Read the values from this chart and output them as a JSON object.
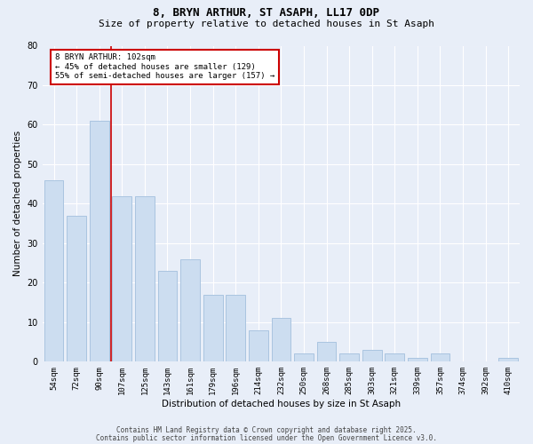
{
  "title1": "8, BRYN ARTHUR, ST ASAPH, LL17 0DP",
  "title2": "Size of property relative to detached houses in St Asaph",
  "xlabel": "Distribution of detached houses by size in St Asaph",
  "ylabel": "Number of detached properties",
  "bar_labels": [
    "54sqm",
    "72sqm",
    "90sqm",
    "107sqm",
    "125sqm",
    "143sqm",
    "161sqm",
    "179sqm",
    "196sqm",
    "214sqm",
    "232sqm",
    "250sqm",
    "268sqm",
    "285sqm",
    "303sqm",
    "321sqm",
    "339sqm",
    "357sqm",
    "374sqm",
    "392sqm",
    "410sqm"
  ],
  "bar_values": [
    46,
    37,
    61,
    42,
    42,
    23,
    26,
    17,
    17,
    8,
    11,
    2,
    5,
    2,
    3,
    2,
    1,
    2,
    0,
    0,
    1
  ],
  "bar_color": "#ccddf0",
  "bar_edge_color": "#aac4e0",
  "vline_x_index": 2,
  "vline_color": "#cc0000",
  "annotation_line1": "8 BRYN ARTHUR: 102sqm",
  "annotation_line2": "← 45% of detached houses are smaller (129)",
  "annotation_line3": "55% of semi-detached houses are larger (157) →",
  "annotation_box_facecolor": "#ffffff",
  "annotation_box_edgecolor": "#cc0000",
  "ylim": [
    0,
    80
  ],
  "yticks": [
    0,
    10,
    20,
    30,
    40,
    50,
    60,
    70,
    80
  ],
  "background_color": "#e8eef8",
  "grid_color": "#ffffff",
  "title1_fontsize": 9,
  "title2_fontsize": 8,
  "footer1": "Contains HM Land Registry data © Crown copyright and database right 2025.",
  "footer2": "Contains public sector information licensed under the Open Government Licence v3.0."
}
